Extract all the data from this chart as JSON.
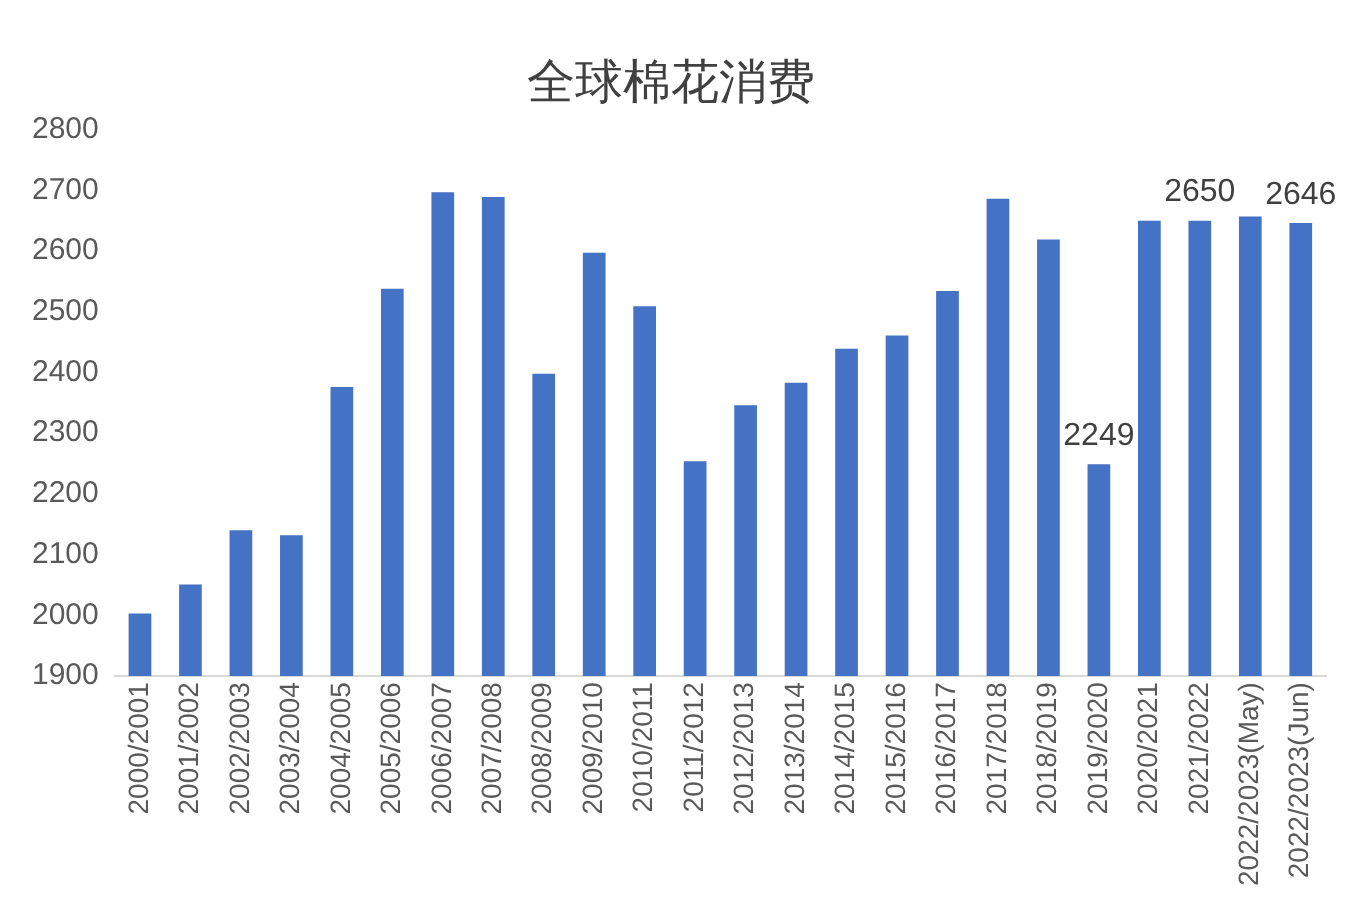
{
  "chart_data": {
    "type": "bar",
    "title": "全球棉花消费",
    "categories": [
      "2000/2001",
      "2001/2002",
      "2002/2003",
      "2003/2004",
      "2004/2005",
      "2005/2006",
      "2006/2007",
      "2007/2008",
      "2008/2009",
      "2009/2010",
      "2010/2011",
      "2011/2012",
      "2012/2013",
      "2013/2014",
      "2014/2015",
      "2015/2016",
      "2016/2017",
      "2017/2018",
      "2018/2019",
      "2019/2020",
      "2020/2021",
      "2021/2022",
      "2022/2023(May)",
      "2022/2023(Jun)"
    ],
    "values": [
      2003,
      2051,
      2140,
      2132,
      2376,
      2538,
      2697,
      2689,
      2398,
      2597,
      2509,
      2254,
      2346,
      2383,
      2439,
      2461,
      2534,
      2686,
      2619,
      2249,
      2650,
      2650,
      2657,
      2646
    ],
    "value_labels": [
      null,
      null,
      null,
      null,
      null,
      null,
      null,
      null,
      null,
      null,
      null,
      null,
      null,
      null,
      null,
      null,
      null,
      null,
      null,
      "2249",
      null,
      "2650",
      null,
      "2646"
    ],
    "color": "#4472c4",
    "ylim": [
      1900,
      2800
    ],
    "yticks": [
      1900,
      2000,
      2100,
      2200,
      2300,
      2400,
      2500,
      2600,
      2700,
      2800
    ],
    "grid": false,
    "legend": false
  }
}
